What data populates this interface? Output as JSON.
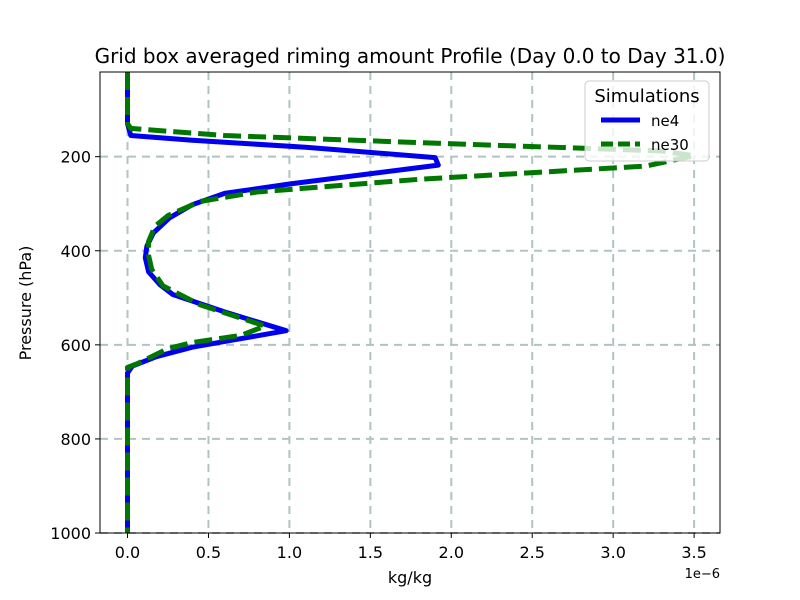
{
  "chart_data": {
    "type": "line",
    "title": "Grid box averaged riming amount Profile (Day 0.0 to Day 31.0)",
    "xlabel": "kg/kg",
    "ylabel": "Pressure (hPa)",
    "x_offset_label": "1e−6",
    "xlim": [
      -1.7e-07,
      3.66e-06
    ],
    "ylim": [
      1000,
      20
    ],
    "y_inverted": true,
    "grid": true,
    "x_ticks": [
      0,
      5e-07,
      1e-06,
      1.5e-06,
      2e-06,
      2.5e-06,
      3e-06,
      3.5e-06
    ],
    "x_tick_labels": [
      "0.0",
      "0.5",
      "1.0",
      "1.5",
      "2.0",
      "2.5",
      "3.0",
      "3.5"
    ],
    "y_ticks": [
      200,
      400,
      600,
      800,
      1000
    ],
    "y_tick_labels": [
      "200",
      "400",
      "600",
      "800",
      "1000"
    ],
    "legend": {
      "title": "Simulations",
      "position": "top-right"
    },
    "series": [
      {
        "name": "ne4",
        "color": "#0000ee",
        "style": "solid",
        "points": [
          [
            0,
            20
          ],
          [
            0,
            130
          ],
          [
            2e-08,
            155
          ],
          [
            4e-07,
            165
          ],
          [
            1.1e-06,
            180
          ],
          [
            1.9e-06,
            202
          ],
          [
            1.92e-06,
            218
          ],
          [
            1e-06,
            258
          ],
          [
            6e-07,
            278
          ],
          [
            4e-07,
            302
          ],
          [
            2.6e-07,
            330
          ],
          [
            1.6e-07,
            362
          ],
          [
            1.2e-07,
            390
          ],
          [
            1.1e-07,
            415
          ],
          [
            1.3e-07,
            445
          ],
          [
            2e-07,
            472
          ],
          [
            2.8e-07,
            493
          ],
          [
            6e-07,
            530
          ],
          [
            9.8e-07,
            570
          ],
          [
            6.5e-07,
            590
          ],
          [
            4e-07,
            605
          ],
          [
            1.8e-07,
            625
          ],
          [
            3e-08,
            645
          ],
          [
            0,
            660
          ],
          [
            0,
            1000
          ]
        ]
      },
      {
        "name": "ne30",
        "color": "#007700",
        "style": "dashed",
        "points": [
          [
            0,
            20
          ],
          [
            0,
            130
          ],
          [
            2e-08,
            140
          ],
          [
            6e-07,
            155
          ],
          [
            1.8e-06,
            170
          ],
          [
            3.3e-06,
            188
          ],
          [
            3.5e-06,
            198
          ],
          [
            3.2e-06,
            220
          ],
          [
            1.8e-06,
            248
          ],
          [
            8e-07,
            275
          ],
          [
            4.5e-07,
            295
          ],
          [
            2.5e-07,
            325
          ],
          [
            1.7e-07,
            348
          ],
          [
            1.3e-07,
            380
          ],
          [
            1.3e-07,
            410
          ],
          [
            1.5e-07,
            440
          ],
          [
            2.2e-07,
            475
          ],
          [
            4.5e-07,
            515
          ],
          [
            8.5e-07,
            560
          ],
          [
            7e-07,
            580
          ],
          [
            4e-07,
            595
          ],
          [
            2.5e-07,
            608
          ],
          [
            6e-08,
            640
          ],
          [
            0,
            648
          ],
          [
            0,
            1000
          ]
        ]
      }
    ]
  }
}
